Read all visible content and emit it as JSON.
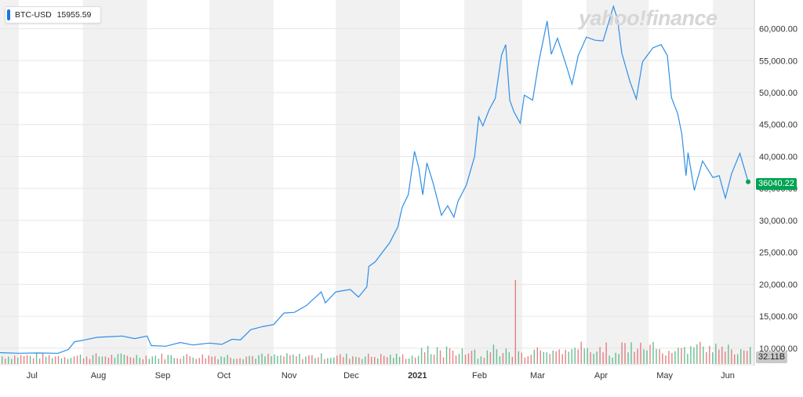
{
  "legend": {
    "symbol": "BTC-USD",
    "value": "15955.59",
    "color": "#1a73e8"
  },
  "watermark": "yahoo!finance",
  "last_price_label": "36040.22",
  "volume_label": "32.11B",
  "colors": {
    "line": "#2f8fe6",
    "vol_up": "#4db380",
    "vol_down": "#e06c6c",
    "band": "#f1f1f1",
    "grid": "#e6e6e6",
    "price_tag": "#00a352"
  },
  "chart_data": {
    "type": "line",
    "title": "",
    "series": [
      {
        "name": "BTC-USD",
        "points": [
          [
            "2020-06-22",
            9300
          ],
          [
            "2020-07-01",
            9200
          ],
          [
            "2020-07-10",
            9250
          ],
          [
            "2020-07-20",
            9200
          ],
          [
            "2020-07-25",
            9800
          ],
          [
            "2020-07-28",
            11000
          ],
          [
            "2020-08-02",
            11300
          ],
          [
            "2020-08-08",
            11700
          ],
          [
            "2020-08-14",
            11800
          ],
          [
            "2020-08-20",
            11900
          ],
          [
            "2020-08-26",
            11500
          ],
          [
            "2020-09-01",
            11900
          ],
          [
            "2020-09-03",
            10400
          ],
          [
            "2020-09-10",
            10300
          ],
          [
            "2020-09-17",
            10900
          ],
          [
            "2020-09-23",
            10500
          ],
          [
            "2020-10-01",
            10800
          ],
          [
            "2020-10-07",
            10600
          ],
          [
            "2020-10-12",
            11400
          ],
          [
            "2020-10-16",
            11300
          ],
          [
            "2020-10-21",
            12900
          ],
          [
            "2020-10-27",
            13400
          ],
          [
            "2020-11-01",
            13700
          ],
          [
            "2020-11-06",
            15500
          ],
          [
            "2020-11-11",
            15600
          ],
          [
            "2020-11-17",
            16700
          ],
          [
            "2020-11-24",
            18800
          ],
          [
            "2020-11-26",
            17100
          ],
          [
            "2020-12-01",
            18800
          ],
          [
            "2020-12-08",
            19200
          ],
          [
            "2020-12-12",
            18000
          ],
          [
            "2020-12-16",
            19600
          ],
          [
            "2020-12-17",
            22800
          ],
          [
            "2020-12-20",
            23500
          ],
          [
            "2020-12-27",
            26500
          ],
          [
            "2020-12-31",
            29000
          ],
          [
            "2021-01-02",
            32000
          ],
          [
            "2021-01-05",
            34000
          ],
          [
            "2021-01-08",
            40800
          ],
          [
            "2021-01-10",
            38300
          ],
          [
            "2021-01-12",
            34000
          ],
          [
            "2021-01-14",
            39000
          ],
          [
            "2021-01-17",
            35800
          ],
          [
            "2021-01-21",
            30800
          ],
          [
            "2021-01-24",
            32300
          ],
          [
            "2021-01-27",
            30500
          ],
          [
            "2021-01-29",
            33000
          ],
          [
            "2021-02-02",
            35500
          ],
          [
            "2021-02-06",
            40000
          ],
          [
            "2021-02-08",
            46200
          ],
          [
            "2021-02-10",
            44800
          ],
          [
            "2021-02-13",
            47300
          ],
          [
            "2021-02-16",
            49100
          ],
          [
            "2021-02-19",
            55900
          ],
          [
            "2021-02-21",
            57500
          ],
          [
            "2021-02-23",
            48800
          ],
          [
            "2021-02-25",
            47000
          ],
          [
            "2021-02-28",
            45200
          ],
          [
            "2021-03-02",
            49600
          ],
          [
            "2021-03-06",
            48800
          ],
          [
            "2021-03-09",
            54800
          ],
          [
            "2021-03-13",
            61200
          ],
          [
            "2021-03-15",
            56000
          ],
          [
            "2021-03-18",
            58500
          ],
          [
            "2021-03-22",
            54500
          ],
          [
            "2021-03-25",
            51300
          ],
          [
            "2021-03-28",
            55800
          ],
          [
            "2021-04-01",
            58700
          ],
          [
            "2021-04-05",
            58200
          ],
          [
            "2021-04-09",
            58100
          ],
          [
            "2021-04-14",
            63500
          ],
          [
            "2021-04-16",
            61400
          ],
          [
            "2021-04-18",
            56200
          ],
          [
            "2021-04-22",
            51700
          ],
          [
            "2021-04-25",
            49000
          ],
          [
            "2021-04-28",
            54800
          ],
          [
            "2021-05-03",
            57000
          ],
          [
            "2021-05-07",
            57500
          ],
          [
            "2021-05-10",
            55800
          ],
          [
            "2021-05-12",
            49200
          ],
          [
            "2021-05-15",
            46700
          ],
          [
            "2021-05-17",
            43500
          ],
          [
            "2021-05-19",
            37000
          ],
          [
            "2021-05-20",
            40600
          ],
          [
            "2021-05-23",
            34700
          ],
          [
            "2021-05-27",
            39300
          ],
          [
            "2021-06-01",
            36700
          ],
          [
            "2021-06-04",
            37000
          ],
          [
            "2021-06-07",
            33500
          ],
          [
            "2021-06-10",
            37300
          ],
          [
            "2021-06-14",
            40500
          ],
          [
            "2021-06-18",
            36040
          ]
        ]
      }
    ],
    "ylabel": "",
    "xlabel": "",
    "y_ticks": [
      "10,000.00",
      "15,000.00",
      "20,000.00",
      "25,000.00",
      "30,000.00",
      "35,000.00",
      "40,000.00",
      "45,000.00",
      "50,000.00",
      "55,000.00",
      "60,000.00"
    ],
    "x_ticks": [
      {
        "label": "Jul",
        "date": "2020-07-01"
      },
      {
        "label": "Aug",
        "date": "2020-08-01"
      },
      {
        "label": "Sep",
        "date": "2020-09-01"
      },
      {
        "label": "Oct",
        "date": "2020-10-01"
      },
      {
        "label": "Nov",
        "date": "2020-11-01"
      },
      {
        "label": "Dec",
        "date": "2020-12-01"
      },
      {
        "label": "2021",
        "date": "2021-01-01",
        "bold": true
      },
      {
        "label": "Feb",
        "date": "2021-02-01"
      },
      {
        "label": "Mar",
        "date": "2021-03-01"
      },
      {
        "label": "Apr",
        "date": "2021-04-01"
      },
      {
        "label": "May",
        "date": "2021-05-01"
      },
      {
        "label": "Jun",
        "date": "2021-06-01"
      }
    ],
    "x_range": [
      "2020-06-22",
      "2021-06-21"
    ],
    "ylim": [
      8500,
      64000
    ],
    "grid": true,
    "volume": {
      "unit": "B",
      "max_spike": {
        "date": "2021-02-26",
        "value": 350
      }
    }
  }
}
